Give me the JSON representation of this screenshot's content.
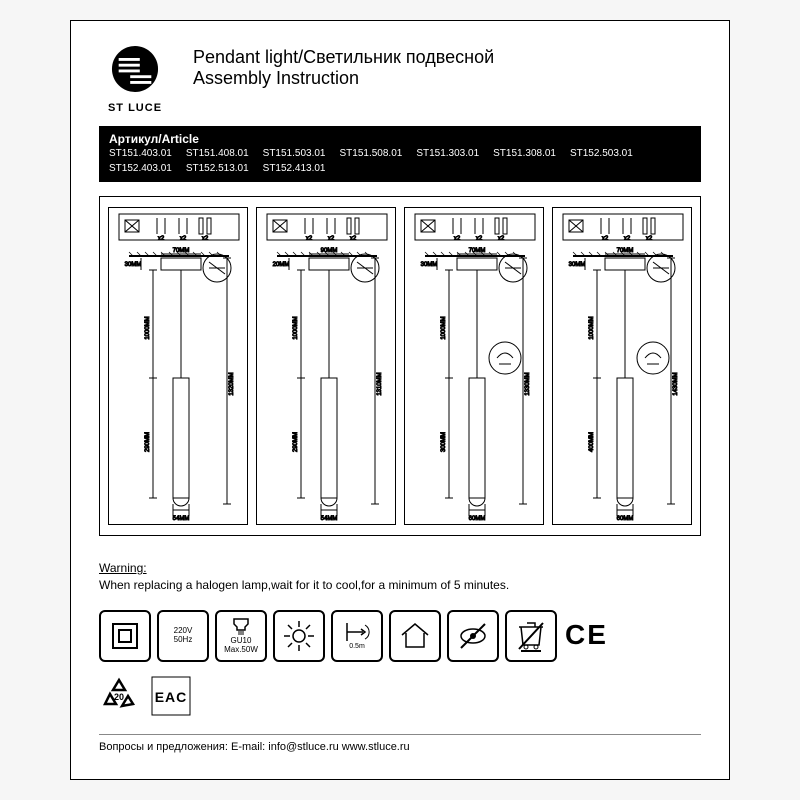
{
  "brand": "ST LUCE",
  "title_line1": "Pendant light/Светильник подвесной",
  "title_line2": "Assembly Instruction",
  "article_label": "Артикул/Article",
  "article_codes": [
    "ST151.403.01",
    "ST151.408.01",
    "ST151.503.01",
    "ST151.508.01",
    "ST151.303.01",
    "ST151.308.01",
    "ST152.503.01",
    "ST152.403.01",
    "ST152.513.01",
    "ST152.413.01"
  ],
  "panels": [
    {
      "canopy_w": "70MM",
      "canopy_side": "30MM",
      "cable_len": "1000MM",
      "total_len": "1320MM",
      "body_len": "290MM",
      "body_w": "54MM",
      "canopy_top": "20MM"
    },
    {
      "canopy_w": "90MM",
      "canopy_side": "20MM",
      "cable_len": "1000MM",
      "total_len": "1310MM",
      "body_len": "290MM",
      "body_w": "54MM",
      "canopy_top": ""
    },
    {
      "canopy_w": "70MM",
      "canopy_side": "30MM",
      "cable_len": "1000MM",
      "total_len": "1330MM",
      "body_len": "300MM",
      "body_w": "60MM",
      "canopy_top": ""
    },
    {
      "canopy_w": "70MM",
      "canopy_side": "30MM",
      "cable_len": "1000MM",
      "total_len": "1430MM",
      "body_len": "400MM",
      "body_w": "60MM",
      "canopy_top": ""
    }
  ],
  "hardware_qty": [
    "x2",
    "x2",
    "x2"
  ],
  "warning_label": "Warning:",
  "warning_text": "When replacing a halogen lamp,wait for it to cool,for a minimum of 5 minutes.",
  "spec_icons": {
    "voltage_line1": "220V",
    "voltage_line2": "50Hz",
    "bulb_line1": "GU10",
    "bulb_line2": "Max.50W",
    "distance": "0.5m",
    "ce": "CE",
    "recycle_num": "20"
  },
  "eac": "EAC",
  "footer_text": "Вопросы и предложения: E-mail: info@stluce.ru www.stluce.ru",
  "colors": {
    "stroke": "#000000",
    "bg": "#ffffff"
  }
}
